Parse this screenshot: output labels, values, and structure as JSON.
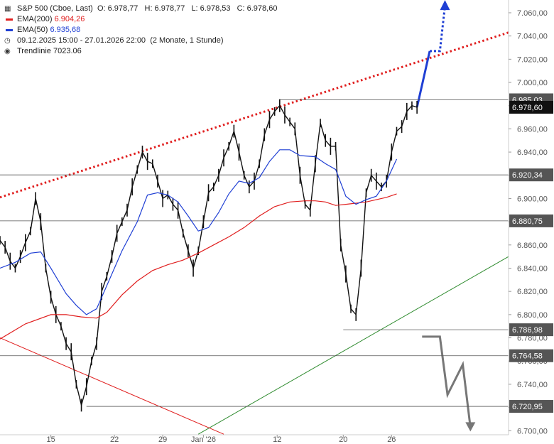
{
  "legend": {
    "icon": "candlestick-icon",
    "instrument": "S&P 500 (Cboe, Last)",
    "open": "O: 6.978,77",
    "high": "H: 6.978,77",
    "low": "L: 6.978,53",
    "close": "C: 6.978,60",
    "ema200_label": "EMA(200)",
    "ema200_value": "6.904,26",
    "ema50_label": "EMA(50)",
    "ema50_value": "6.935,68",
    "period": "09.12.2025 15:00 - 27.01.2026 22:00",
    "period_note": "(2 Monate, 1 Stunde)",
    "trendline_label": "Trendlinie",
    "trendline_value": "7023.06"
  },
  "chart_data": {
    "type": "line",
    "y_axis": {
      "range": [
        6695,
        7070
      ],
      "ticks": [
        6700,
        6720,
        6740,
        6760,
        6780,
        6800,
        6820,
        6840,
        6860,
        6880,
        6900,
        6920,
        6940,
        6960,
        6980,
        7000,
        7020,
        7040,
        7060
      ],
      "tick_labels": [
        "6.700,00",
        "6.720,00",
        "6.740,00",
        "6.760,00",
        "6.780,00",
        "6.800,00",
        "6.820,00",
        "6.840,00",
        "6.860,00",
        "6.880,00",
        "6.900,00",
        "6.920,00",
        "6.940,00",
        "6.960,00",
        "6.980,00",
        "7.000,00",
        "7.020,00",
        "7.040,00",
        "7.060,00"
      ],
      "side": "right",
      "grid": false
    },
    "x_axis": {
      "range": [
        0,
        100
      ],
      "ticks": [
        {
          "x": 10,
          "label": "15"
        },
        {
          "x": 22.5,
          "label": "22"
        },
        {
          "x": 32,
          "label": "29"
        },
        {
          "x": 40,
          "label": "Jan '26"
        },
        {
          "x": 54.5,
          "label": "12"
        },
        {
          "x": 67.5,
          "label": "20"
        },
        {
          "x": 77,
          "label": "26"
        }
      ]
    },
    "price_lines": [
      {
        "value": 6985.03,
        "label": "6.985,03",
        "color": "#555555"
      },
      {
        "value": 6920.34,
        "label": "6.920,34",
        "color": "#555555"
      },
      {
        "value": 6880.75,
        "label": "6.880,75",
        "color": "#555555"
      },
      {
        "value": 6786.98,
        "label": "6.786,98",
        "color": "#555555"
      },
      {
        "value": 6764.58,
        "label": "6.764,58",
        "color": "#555555"
      },
      {
        "value": 6720.95,
        "label": "6.720,95",
        "color": "#555555"
      }
    ],
    "current_price": {
      "value": 6978.6,
      "label": "6.978,60",
      "color": "#111111"
    },
    "series": [
      {
        "name": "S&P 500",
        "color": "#111111",
        "points": [
          [
            0,
            6864
          ],
          [
            1,
            6858
          ],
          [
            2,
            6846
          ],
          [
            3,
            6840
          ],
          [
            4,
            6850
          ],
          [
            5,
            6862
          ],
          [
            6,
            6872
          ],
          [
            7,
            6900
          ],
          [
            8,
            6880
          ],
          [
            9,
            6840
          ],
          [
            10,
            6815
          ],
          [
            11,
            6800
          ],
          [
            12,
            6790
          ],
          [
            13,
            6775
          ],
          [
            14,
            6768
          ],
          [
            15,
            6740
          ],
          [
            16,
            6722
          ],
          [
            17,
            6738
          ],
          [
            18,
            6760
          ],
          [
            19,
            6775
          ],
          [
            20,
            6820
          ],
          [
            21,
            6833
          ],
          [
            22,
            6850
          ],
          [
            23,
            6870
          ],
          [
            24,
            6880
          ],
          [
            25,
            6890
          ],
          [
            26,
            6910
          ],
          [
            27,
            6925
          ],
          [
            28,
            6940
          ],
          [
            29,
            6932
          ],
          [
            30,
            6930
          ],
          [
            31,
            6915
          ],
          [
            32,
            6900
          ],
          [
            33,
            6903
          ],
          [
            34,
            6895
          ],
          [
            35,
            6890
          ],
          [
            36,
            6870
          ],
          [
            37,
            6855
          ],
          [
            38,
            6840
          ],
          [
            39,
            6855
          ],
          [
            40,
            6880
          ],
          [
            41,
            6905
          ],
          [
            42,
            6910
          ],
          [
            43,
            6920
          ],
          [
            44,
            6935
          ],
          [
            45,
            6945
          ],
          [
            46,
            6958
          ],
          [
            47,
            6940
          ],
          [
            48,
            6920
          ],
          [
            49,
            6910
          ],
          [
            50,
            6915
          ],
          [
            51,
            6930
          ],
          [
            52,
            6955
          ],
          [
            53,
            6968
          ],
          [
            54,
            6975
          ],
          [
            55,
            6980
          ],
          [
            56,
            6972
          ],
          [
            57,
            6966
          ],
          [
            58,
            6960
          ],
          [
            59,
            6920
          ],
          [
            60,
            6895
          ],
          [
            61,
            6890
          ],
          [
            62,
            6930
          ],
          [
            63,
            6965
          ],
          [
            64,
            6950
          ],
          [
            65,
            6945
          ],
          [
            66,
            6945
          ],
          [
            67,
            6860
          ],
          [
            68,
            6835
          ],
          [
            69,
            6805
          ],
          [
            70,
            6800
          ],
          [
            71,
            6840
          ],
          [
            72,
            6905
          ],
          [
            73,
            6920
          ],
          [
            74,
            6915
          ],
          [
            75,
            6910
          ],
          [
            76,
            6915
          ],
          [
            77,
            6940
          ],
          [
            78,
            6958
          ],
          [
            79,
            6962
          ],
          [
            80,
            6975
          ],
          [
            81,
            6980
          ],
          [
            82,
            6978.6
          ]
        ]
      },
      {
        "name": "EMA(200)",
        "color": "#e01e1e",
        "points": [
          [
            0,
            6779
          ],
          [
            5,
            6792
          ],
          [
            10,
            6800
          ],
          [
            13,
            6800
          ],
          [
            16,
            6798
          ],
          [
            19,
            6797
          ],
          [
            21,
            6802
          ],
          [
            24,
            6817
          ],
          [
            27,
            6829
          ],
          [
            30,
            6838
          ],
          [
            33,
            6843
          ],
          [
            36,
            6847
          ],
          [
            39,
            6853
          ],
          [
            42,
            6860
          ],
          [
            45,
            6867
          ],
          [
            48,
            6875
          ],
          [
            51,
            6885
          ],
          [
            54,
            6893
          ],
          [
            57,
            6897
          ],
          [
            60,
            6898
          ],
          [
            62,
            6898
          ],
          [
            64,
            6897
          ],
          [
            66,
            6894
          ],
          [
            68,
            6895
          ],
          [
            70,
            6896
          ],
          [
            72,
            6897
          ],
          [
            74,
            6899
          ],
          [
            76,
            6901
          ],
          [
            78,
            6904
          ]
        ]
      },
      {
        "name": "EMA(50)",
        "color": "#1f3fd4",
        "points": [
          [
            0,
            6840
          ],
          [
            3,
            6845
          ],
          [
            6,
            6853
          ],
          [
            8,
            6854
          ],
          [
            10,
            6840
          ],
          [
            13,
            6818
          ],
          [
            15,
            6808
          ],
          [
            17,
            6800
          ],
          [
            19,
            6805
          ],
          [
            21,
            6825
          ],
          [
            24,
            6855
          ],
          [
            27,
            6880
          ],
          [
            29,
            6903
          ],
          [
            31,
            6905
          ],
          [
            33,
            6903
          ],
          [
            35,
            6897
          ],
          [
            37,
            6885
          ],
          [
            39,
            6872
          ],
          [
            41,
            6875
          ],
          [
            43,
            6888
          ],
          [
            45,
            6904
          ],
          [
            47,
            6915
          ],
          [
            49,
            6913
          ],
          [
            51,
            6918
          ],
          [
            53,
            6932
          ],
          [
            55,
            6942
          ],
          [
            57,
            6942
          ],
          [
            59,
            6937
          ],
          [
            62,
            6936
          ],
          [
            64,
            6930
          ],
          [
            66,
            6925
          ],
          [
            68,
            6902
          ],
          [
            70,
            6895
          ],
          [
            72,
            6899
          ],
          [
            74,
            6902
          ],
          [
            76,
            6915
          ],
          [
            78,
            6934
          ]
        ]
      }
    ],
    "annotations": [
      {
        "name": "Trendlinie",
        "color": "#e01e1e",
        "style": "dotted",
        "points": [
          [
            0,
            6901
          ],
          [
            100,
            7043
          ]
        ]
      },
      {
        "name": "lower-trend-support",
        "color": "#2e8b2e",
        "style": "solid",
        "points": [
          [
            39,
            6697
          ],
          [
            100,
            6850
          ]
        ]
      },
      {
        "name": "down-trend-line",
        "color": "#e01e1e",
        "style": "solid",
        "points": [
          [
            0,
            6780
          ],
          [
            44,
            6697
          ]
        ]
      },
      {
        "name": "bull-scenario-arrow",
        "color": "#1f3fd4",
        "style": "solid-then-dotted",
        "points": [
          [
            82,
            6978.6
          ],
          [
            84.5,
            7027
          ],
          [
            86.5,
            7027
          ],
          [
            87.5,
            7066
          ]
        ]
      },
      {
        "name": "bear-scenario-arrow",
        "color": "#777777",
        "style": "solid",
        "points": [
          [
            83,
            6781
          ],
          [
            86.5,
            6781
          ],
          [
            88,
            6731
          ],
          [
            91,
            6757
          ],
          [
            92.5,
            6703
          ]
        ]
      }
    ]
  }
}
